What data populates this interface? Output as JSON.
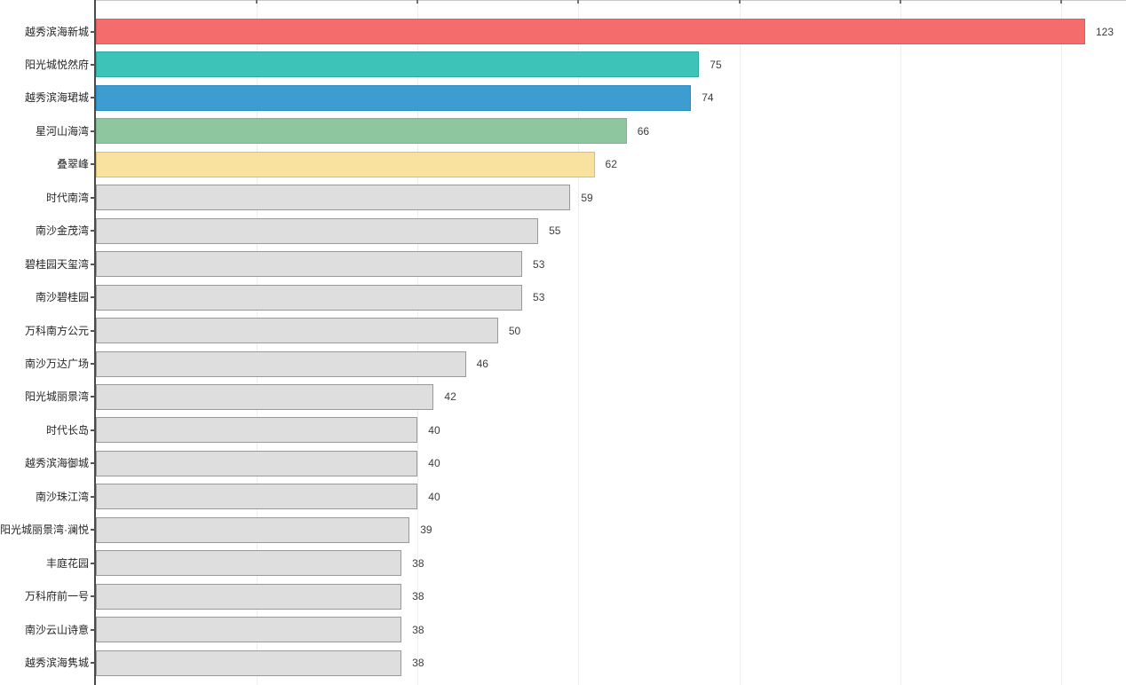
{
  "chart_data": {
    "type": "bar",
    "orientation": "horizontal",
    "title": "",
    "xlabel": "",
    "ylabel": "",
    "categories": [
      "越秀滨海新城",
      "阳光城悦然府",
      "越秀滨海珺城",
      "星河山海湾",
      "叠翠峰",
      "时代南湾",
      "南沙金茂湾",
      "碧桂园天玺湾",
      "南沙碧桂园",
      "万科南方公元",
      "南沙万达广场",
      "阳光城丽景湾",
      "时代长岛",
      "越秀滨海御城",
      "南沙珠江湾",
      "阳光城丽景湾·澜悦",
      "丰庭花园",
      "万科府前一号",
      "南沙云山诗意",
      "越秀滨海隽城"
    ],
    "values": [
      123,
      75,
      74,
      66,
      62,
      59,
      55,
      53,
      53,
      50,
      46,
      42,
      40,
      40,
      40,
      39,
      38,
      38,
      38,
      38
    ],
    "value_labels_shown": true,
    "bar_fill_colors": [
      "#F56C6C",
      "#3EC3B8",
      "#3D9DD1",
      "#8EC6A0",
      "#F9E29D",
      "#DEDEDE",
      "#DEDEDE",
      "#DEDEDE",
      "#DEDEDE",
      "#DEDEDE",
      "#DEDEDE",
      "#DEDEDE",
      "#DEDEDE",
      "#DEDEDE",
      "#DEDEDE",
      "#DEDEDE",
      "#DEDEDE",
      "#DEDEDE",
      "#DEDEDE",
      "#DEDEDE"
    ],
    "bar_border_colors": [
      "#E05A5A",
      "#2FAA9F",
      "#2F8CC0",
      "#79B48C",
      "#D9BC6F",
      "#999999",
      "#999999",
      "#999999",
      "#999999",
      "#999999",
      "#999999",
      "#999999",
      "#999999",
      "#999999",
      "#999999",
      "#999999",
      "#999999",
      "#999999",
      "#999999",
      "#999999"
    ],
    "xlim": [
      0,
      128
    ],
    "gridlines_x": [
      20,
      40,
      60,
      80,
      100,
      120
    ],
    "grid": "vertical-faint",
    "legend": "none",
    "axis_colors": {
      "y_axis_line": "#4a4a4a",
      "top_spine": "#c9c9c9",
      "gridline": "#ededed",
      "category_label": "#262626",
      "value_label": "#3c3c3c"
    }
  }
}
